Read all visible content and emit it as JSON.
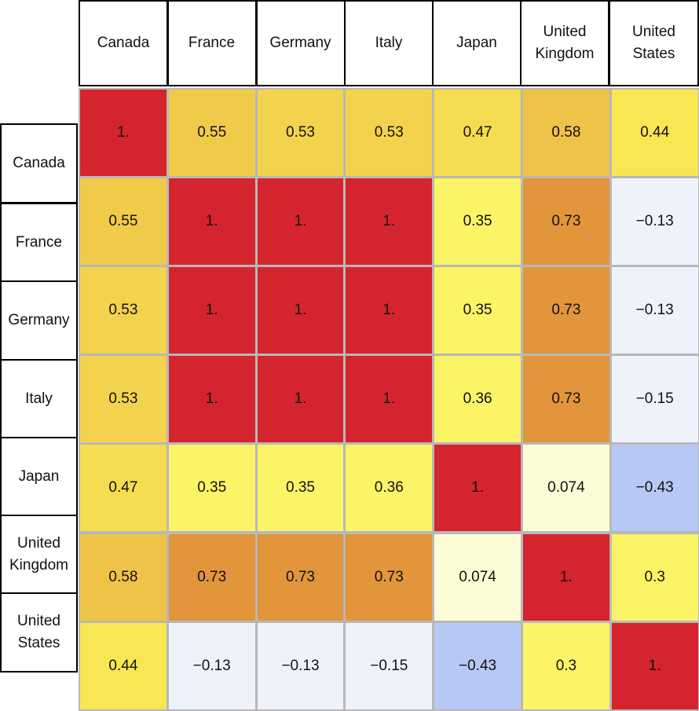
{
  "chart_data": {
    "type": "heatmap",
    "title": "",
    "column_labels": [
      "Canada",
      "France",
      "Germany",
      "Italy",
      "Japan",
      "United Kingdom",
      "United States"
    ],
    "row_labels": [
      "Canada",
      "France",
      "Germany",
      "Italy",
      "Japan",
      "United Kingdom",
      "United States"
    ],
    "values": [
      [
        1.0,
        0.55,
        0.53,
        0.53,
        0.47,
        0.58,
        0.44
      ],
      [
        0.55,
        1.0,
        1.0,
        1.0,
        0.35,
        0.73,
        -0.13
      ],
      [
        0.53,
        1.0,
        1.0,
        1.0,
        0.35,
        0.73,
        -0.13
      ],
      [
        0.53,
        1.0,
        1.0,
        1.0,
        0.36,
        0.73,
        -0.15
      ],
      [
        0.47,
        0.35,
        0.35,
        0.36,
        1.0,
        0.074,
        -0.43
      ],
      [
        0.58,
        0.73,
        0.73,
        0.73,
        0.074,
        1.0,
        0.3
      ],
      [
        0.44,
        -0.13,
        -0.13,
        -0.15,
        -0.43,
        0.3,
        1.0
      ]
    ],
    "value_labels": [
      [
        "1.",
        "0.55",
        "0.53",
        "0.53",
        "0.47",
        "0.58",
        "0.44"
      ],
      [
        "0.55",
        "1.",
        "1.",
        "1.",
        "0.35",
        "0.73",
        "−0.13"
      ],
      [
        "0.53",
        "1.",
        "1.",
        "1.",
        "0.35",
        "0.73",
        "−0.13"
      ],
      [
        "0.53",
        "1.",
        "1.",
        "1.",
        "0.36",
        "0.73",
        "−0.15"
      ],
      [
        "0.47",
        "0.35",
        "0.35",
        "0.36",
        "1.",
        "0.074",
        "−0.43"
      ],
      [
        "0.58",
        "0.73",
        "0.73",
        "0.73",
        "0.074",
        "1.",
        "0.3"
      ],
      [
        "0.44",
        "−0.13",
        "−0.13",
        "−0.15",
        "−0.43",
        "0.3",
        "1."
      ]
    ],
    "cell_colors": [
      [
        "#d4242d",
        "#f0cb4a",
        "#f3d24d",
        "#f3d24d",
        "#f5dc50",
        "#efc347",
        "#f8e653"
      ],
      [
        "#f0cb4a",
        "#d4242d",
        "#d4242d",
        "#d4242d",
        "#fbf466",
        "#e2953a",
        "#eef2fa"
      ],
      [
        "#f3d24d",
        "#d4242d",
        "#d4242d",
        "#d4242d",
        "#fbf466",
        "#e2953a",
        "#eef2fa"
      ],
      [
        "#f3d24d",
        "#d4242d",
        "#d4242d",
        "#d4242d",
        "#fbf466",
        "#e2953a",
        "#eef2fa"
      ],
      [
        "#f5dc50",
        "#fbf466",
        "#fbf466",
        "#fbf466",
        "#d4242d",
        "#fcfcd6",
        "#b8c8f5"
      ],
      [
        "#efc347",
        "#e2953a",
        "#e2953a",
        "#e2953a",
        "#fcfcd6",
        "#d4242d",
        "#fbf466"
      ],
      [
        "#f8e653",
        "#eef2fa",
        "#eef2fa",
        "#eef2fa",
        "#b8c8f5",
        "#fbf466",
        "#d4242d"
      ]
    ],
    "color_scale": "red = high correlation, yellow = moderate, white/blue = low/negative"
  }
}
